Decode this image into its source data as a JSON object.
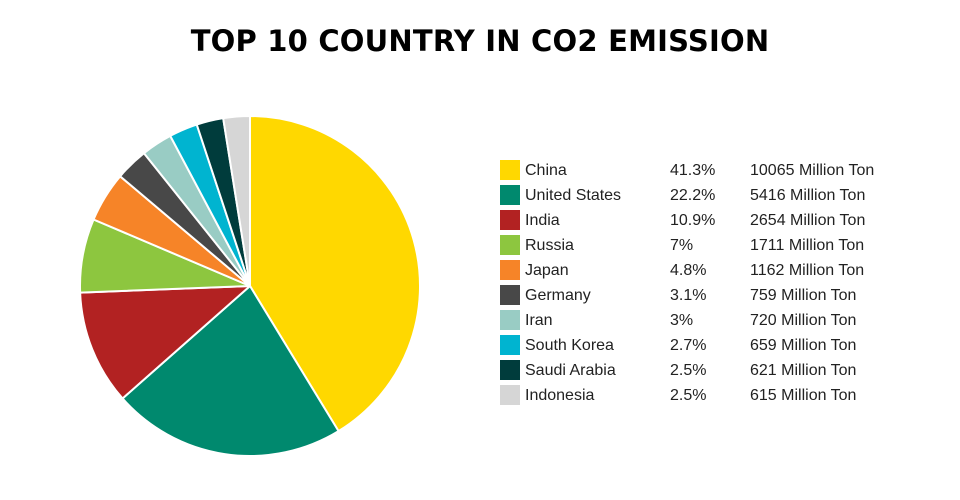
{
  "chart_data": {
    "type": "pie",
    "title": "TOP 10 COUNTRY IN CO2 EMISSION",
    "legend_position": "right",
    "categories": [
      "China",
      "United States",
      "India",
      "Russia",
      "Japan",
      "Germany",
      "Iran",
      "South Korea",
      "Saudi Arabia",
      "Indonesia"
    ],
    "values": [
      10065,
      5416,
      2654,
      1711,
      1162,
      759,
      720,
      659,
      621,
      615
    ],
    "percent_labels": [
      "41.3%",
      "22.2%",
      "10.9%",
      "7%",
      "4.8%",
      "3.1%",
      "3%",
      "2.7%",
      "2.5%",
      "2.5%"
    ],
    "value_labels": [
      "10065 Million Ton",
      "5416 Million Ton",
      "2654 Million Ton",
      "1711 Million Ton",
      "1162 Million Ton",
      "759 Million Ton",
      "720 Million Ton",
      "659 Million Ton",
      "621 Million Ton",
      "615 Million Ton"
    ],
    "colors": [
      "#FFD800",
      "#00896E",
      "#B22222",
      "#8DC63F",
      "#F68428",
      "#484848",
      "#99CCC4",
      "#00B4D0",
      "#003C3C",
      "#D6D6D6"
    ]
  }
}
